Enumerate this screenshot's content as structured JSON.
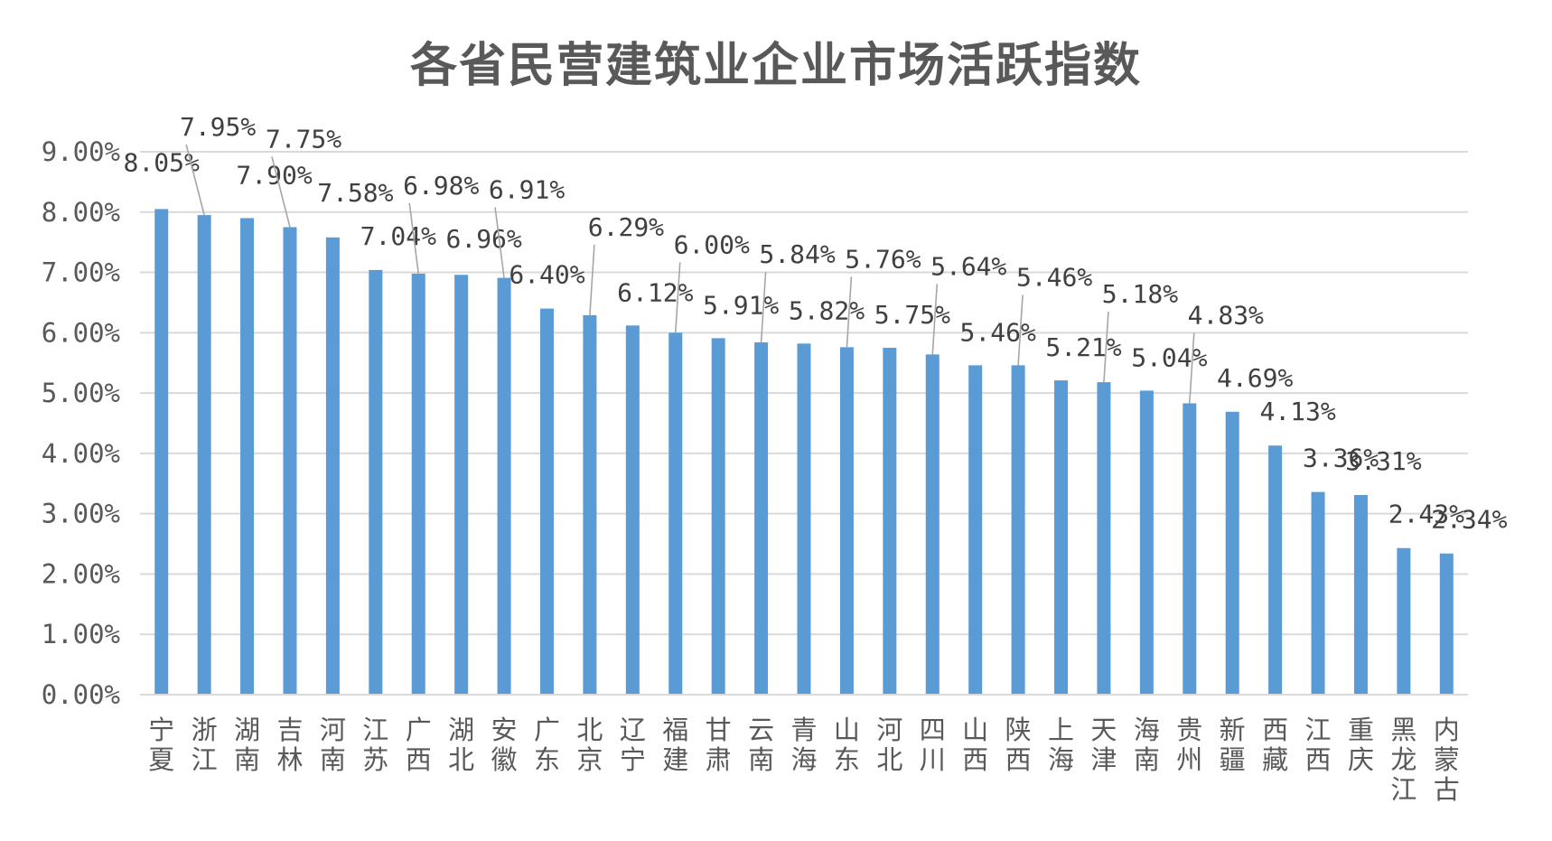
{
  "chart_data": {
    "type": "bar",
    "title": "各省民营建筑业企业市场活跃指数",
    "xlabel": "",
    "ylabel": "",
    "ylim": [
      0,
      9
    ],
    "ytick_values": [
      0,
      1,
      2,
      3,
      4,
      5,
      6,
      7,
      8,
      9
    ],
    "ytick_labels": [
      "0.00%",
      "1.00%",
      "2.00%",
      "3.00%",
      "4.00%",
      "5.00%",
      "6.00%",
      "7.00%",
      "8.00%",
      "9.00%"
    ],
    "grid": true,
    "legend": "none",
    "bar_color": "#5b9bd5",
    "categories": [
      "宁夏",
      "浙江",
      "湖南",
      "吉林",
      "河南",
      "江苏",
      "广西",
      "湖北",
      "安徽",
      "广东",
      "北京",
      "辽宁",
      "福建",
      "甘肃",
      "云南",
      "青海",
      "山东",
      "河北",
      "四川",
      "山西",
      "陕西",
      "上海",
      "天津",
      "海南",
      "贵州",
      "新疆",
      "西藏",
      "江西",
      "重庆",
      "黑龙江",
      "内蒙古"
    ],
    "values": [
      8.05,
      7.95,
      7.9,
      7.75,
      7.58,
      7.04,
      6.98,
      6.96,
      6.91,
      6.4,
      6.29,
      6.12,
      6.0,
      5.91,
      5.84,
      5.82,
      5.76,
      5.75,
      5.64,
      5.46,
      5.46,
      5.21,
      5.18,
      5.04,
      4.83,
      4.69,
      4.13,
      3.36,
      3.31,
      2.43,
      2.34
    ],
    "data_labels": [
      "8.05%",
      "7.95%",
      "7.90%",
      "7.75%",
      "7.58%",
      "7.04%",
      "6.98%",
      "6.96%",
      "6.91%",
      "6.40%",
      "6.29%",
      "6.12%",
      "6.00%",
      "5.91%",
      "5.84%",
      "5.82%",
      "5.76%",
      "5.75%",
      "5.64%",
      "5.46%",
      "5.46%",
      "5.21%",
      "5.18%",
      "5.04%",
      "4.83%",
      "4.69%",
      "4.13%",
      "3.36%",
      "3.31%",
      "2.43%",
      "2.34%"
    ]
  }
}
